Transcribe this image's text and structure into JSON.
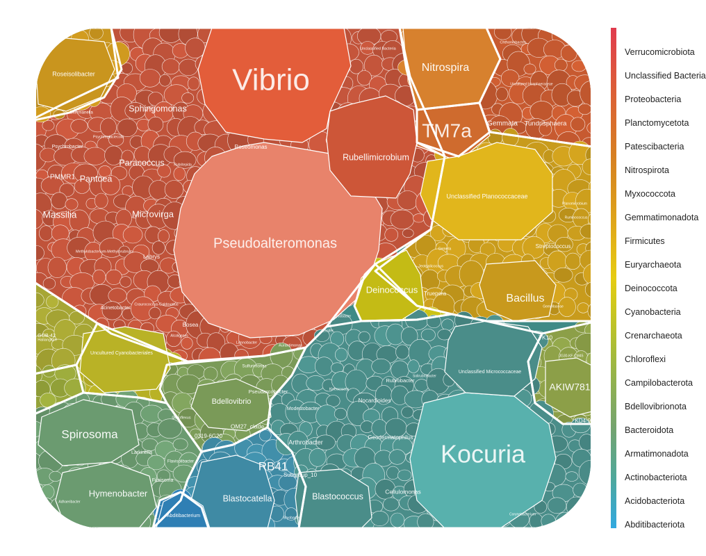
{
  "chart_data": {
    "type": "voronoi-treemap",
    "legend": {
      "placement": "right",
      "items": [
        {
          "label": "Verrucomicrobiota",
          "color": "#e03b4e"
        },
        {
          "label": "Unclassified Bacteria",
          "color": "#df4a45"
        },
        {
          "label": "Proteobacteria",
          "color": "#dd583c"
        },
        {
          "label": "Planctomycetota",
          "color": "#db6533"
        },
        {
          "label": "Patescibacteria",
          "color": "#d9712b"
        },
        {
          "label": "Nitrospirota",
          "color": "#d77e23"
        },
        {
          "label": "Myxococcota",
          "color": "#d88c1f"
        },
        {
          "label": "Gemmatimonadota",
          "color": "#dc9a1c"
        },
        {
          "label": "Firmicutes",
          "color": "#e0aa19"
        },
        {
          "label": "Euryarchaeota",
          "color": "#e4bb16"
        },
        {
          "label": "Deinococcota",
          "color": "#e6cc12"
        },
        {
          "label": "Cyanobacteria",
          "color": "#d0c81c"
        },
        {
          "label": "Crenarchaeota",
          "color": "#bbc22a"
        },
        {
          "label": "Chloroflexi",
          "color": "#a6bb3a"
        },
        {
          "label": "Campilobacterota",
          "color": "#94b34c"
        },
        {
          "label": "Bdellovibrionota",
          "color": "#84ab5e"
        },
        {
          "label": "Bacteroidota",
          "color": "#74a46f"
        },
        {
          "label": "Armatimonadota",
          "color": "#61a685"
        },
        {
          "label": "Actinobacteriota",
          "color": "#4fa89b"
        },
        {
          "label": "Acidobacteriota",
          "color": "#3fa8bf"
        },
        {
          "label": "Abditibacteriota",
          "color": "#32a9e0"
        }
      ]
    },
    "groups": [
      {
        "phylum": "Proteobacteria",
        "color": "#c0533a",
        "genera": [
          {
            "label": "Vibrio",
            "color": "#e35d3a"
          },
          {
            "label": "Pseudoalteromonas",
            "color": "#e8836b"
          },
          {
            "label": "Rubellimicrobium",
            "color": "#cd5638"
          },
          {
            "label": "Sphingomonas",
            "color": "#bf5138"
          },
          {
            "label": "Paracoccus",
            "color": "#bf5138"
          },
          {
            "label": "Pantoea",
            "color": "#bf5138"
          },
          {
            "label": "Massilia",
            "color": "#bf5138"
          },
          {
            "label": "Microvirga",
            "color": "#bf5138"
          },
          {
            "label": "Roseomonas",
            "color": "#bf5138"
          },
          {
            "label": "Psychrobacter",
            "color": "#bf5138"
          },
          {
            "label": "PMMR1",
            "color": "#bf5138"
          },
          {
            "label": "Acinetobacter",
            "color": "#bf5138"
          },
          {
            "label": "Labrys",
            "color": "#bf5138"
          },
          {
            "label": "Bosea",
            "color": "#bf5138"
          },
          {
            "label": "Skermanella",
            "color": "#bf5138"
          },
          {
            "label": "Psychroglaciecola",
            "color": "#bf5138"
          },
          {
            "label": "Methylobacterium-Methylorubrum",
            "color": "#bf5138"
          },
          {
            "label": "Craurococcus-Caldovatus",
            "color": "#bf5138"
          },
          {
            "label": "Limnobacter",
            "color": "#bf5138"
          },
          {
            "label": "Aurantimonas",
            "color": "#bf5138"
          },
          {
            "label": "Rubritepida",
            "color": "#bf5138"
          },
          {
            "label": "Alcaligenes",
            "color": "#bf5138"
          },
          {
            "label": "Lysobacter",
            "color": "#bf5138"
          },
          {
            "label": "Ensifer",
            "color": "#bf5138"
          },
          {
            "label": "Haliangium",
            "color": "#c55d2e"
          },
          {
            "label": "Unclassified Bacteria",
            "color": "#b8423d"
          },
          {
            "label": "Chthoniobacter",
            "color": "#b2303d"
          }
        ]
      },
      {
        "phylum": "Nitrospirota",
        "color": "#d27f2d",
        "genera": [
          {
            "label": "Nitrospira",
            "color": "#d7812e"
          }
        ]
      },
      {
        "phylum": "Patescibacteria",
        "color": "#cf6b2e",
        "genera": [
          {
            "label": "TM7a",
            "color": "#cf6b2e"
          }
        ]
      },
      {
        "phylum": "Planctomycetota",
        "color": "#c75a30",
        "genera": [
          {
            "label": "Gemmata",
            "color": "#c75a30"
          },
          {
            "label": "Tundrisphaera",
            "color": "#c75a30"
          },
          {
            "label": "Uncultured Isosphaeraceae",
            "color": "#c75a30"
          }
        ]
      },
      {
        "phylum": "Firmicutes",
        "color": "#c89b1c",
        "genera": [
          {
            "label": "Unclassified Planococcaceae",
            "color": "#e1b61c"
          },
          {
            "label": "Bacillus",
            "color": "#c8991d"
          },
          {
            "label": "Streptococcus",
            "color": "#c8991d"
          },
          {
            "label": "Jeotgalicoccus",
            "color": "#c8991d"
          },
          {
            "label": "Gemella",
            "color": "#c8991d"
          },
          {
            "label": "Planomicrobium",
            "color": "#c8991d"
          },
          {
            "label": "Ruminococcus",
            "color": "#c8991d"
          },
          {
            "label": "Gemellaceae",
            "color": "#c8991d"
          }
        ]
      },
      {
        "phylum": "Deinococcota",
        "color": "#c4bb15",
        "genera": [
          {
            "label": "Deinococcus",
            "color": "#c4bb15"
          },
          {
            "label": "Truepera",
            "color": "#bfa51c"
          }
        ]
      },
      {
        "phylum": "Myxococcota",
        "color": "#c9951e",
        "genera": [
          {
            "label": "Roseisolibacter",
            "color": "#c9951e"
          }
        ]
      },
      {
        "phylum": "Cyanobacteria",
        "color": "#b9b226",
        "genera": [
          {
            "label": "Uncultured Cyanobacteriales",
            "color": "#b9b226"
          }
        ]
      },
      {
        "phylum": "Crenarchaeota",
        "color": "#a7a634",
        "genera": [
          {
            "label": "GOB-42",
            "color": "#a7a634"
          }
        ]
      },
      {
        "phylum": "Chloroflexi",
        "color": "#98a73b",
        "genera": [
          {
            "label": "KD4-96",
            "color": "#98a73b"
          },
          {
            "label": "JG30-KF-CM45",
            "color": "#98a73b"
          }
        ]
      },
      {
        "phylum": "Campilobacterota",
        "color": "#8c9f48",
        "genera": [
          {
            "label": "AKIW781",
            "color": "#8c9f48"
          },
          {
            "label": "TK10",
            "color": "#8c9f48"
          }
        ]
      },
      {
        "phylum": "Bdellovibrionota",
        "color": "#7a9a58",
        "genera": [
          {
            "label": "Bdellovibrio",
            "color": "#7a9a58"
          },
          {
            "label": "Pseudarcobacter",
            "color": "#84a257"
          },
          {
            "label": "Sulfurimonas",
            "color": "#84a257"
          },
          {
            "label": "OM27_clade",
            "color": "#7a9a58"
          },
          {
            "label": "0319-6G20",
            "color": "#7a9a58"
          },
          {
            "label": "Oligoflexus",
            "color": "#7a9a58"
          }
        ]
      },
      {
        "phylum": "Bacteroidota",
        "color": "#6b9b70",
        "genera": [
          {
            "label": "Spirosoma",
            "color": "#6b9b70"
          },
          {
            "label": "Hymenobacter",
            "color": "#6b9b70"
          },
          {
            "label": "Larkinella",
            "color": "#6b9b70"
          },
          {
            "label": "Fibrisoma",
            "color": "#6b9b70"
          },
          {
            "label": "Flavisolibacter",
            "color": "#6b9b70"
          },
          {
            "label": "Adhaeribacter",
            "color": "#6b9b70"
          }
        ]
      },
      {
        "phylum": "Actinobacteriota",
        "color": "#4a8d89",
        "genera": [
          {
            "label": "Kocuria",
            "color": "#58b1ad"
          },
          {
            "label": "Unclassified Micrococcaceae",
            "color": "#4a8d89"
          },
          {
            "label": "Rubrobacter",
            "color": "#4a8d89"
          },
          {
            "label": "Nocardioides",
            "color": "#4a8d89"
          },
          {
            "label": "Modestobacter",
            "color": "#4a8d89"
          },
          {
            "label": "Geodermatophilus",
            "color": "#4a8d89"
          },
          {
            "label": "Arthrobacter",
            "color": "#4a8d89"
          },
          {
            "label": "Blastococcus",
            "color": "#4a8d89"
          },
          {
            "label": "Cellulomonas",
            "color": "#4a8d89"
          },
          {
            "label": "Corynebacterium",
            "color": "#4a8d89"
          },
          {
            "label": "Solirubrobacter",
            "color": "#4a8d89"
          },
          {
            "label": "Kineococcus",
            "color": "#4a8d89"
          }
        ]
      },
      {
        "phylum": "Acidobacteriota",
        "color": "#3f8aa4",
        "genera": [
          {
            "label": "RB41",
            "color": "#3f8aa4"
          },
          {
            "label": "Blastocatella",
            "color": "#3f8aa4"
          },
          {
            "label": "Bryobacter",
            "color": "#3f8aa4"
          },
          {
            "label": "Subgroup_10",
            "color": "#3f8aa4"
          }
        ]
      },
      {
        "phylum": "Abditibacteriota",
        "color": "#2f7fb4",
        "genera": [
          {
            "label": "Abditibacterium",
            "color": "#2f7fb4"
          }
        ]
      }
    ]
  }
}
